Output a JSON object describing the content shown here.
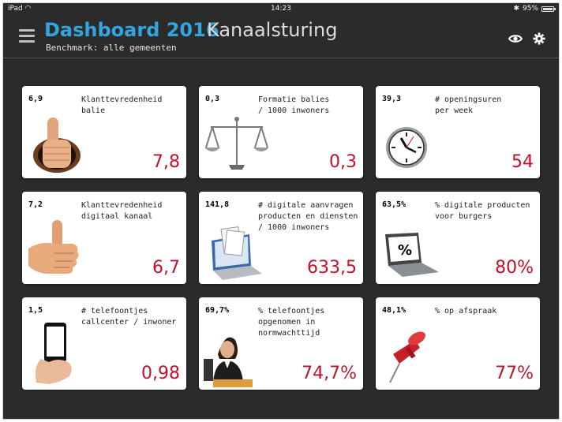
{
  "statusbar": {
    "device": "iPad",
    "time": "14:23",
    "battery": "95%"
  },
  "header": {
    "title_main": "Dashboard 2016",
    "title_sub": "Kanaalsturing",
    "benchmark": "Benchmark: alle gemeenten"
  },
  "icons": {
    "menu": "hamburger-menu-icon",
    "visibility": "eye-icon",
    "settings": "gear-icon"
  },
  "colors": {
    "accent": "#33a6df",
    "value": "#c0112a",
    "background": "#2b2b2b"
  },
  "cards": [
    {
      "benchmark": "6,9",
      "label": "Klanttevredenheid\nbalie",
      "value": "7,8"
    },
    {
      "benchmark": "0,3",
      "label": "Formatie balies\n/ 1000 inwoners",
      "value": "0,3"
    },
    {
      "benchmark": "39,3",
      "label": "# openingsuren\nper week",
      "value": "54"
    },
    {
      "benchmark": "7,2",
      "label": "Klanttevredenheid\ndigitaal kanaal",
      "value": "6,7"
    },
    {
      "benchmark": "141,8",
      "label": "# digitale aanvragen\nproducten en diensten\n/ 1000 inwoners",
      "value": "633,5"
    },
    {
      "benchmark": "63,5%",
      "label": "% digitale producten\nvoor burgers",
      "value": "80%"
    },
    {
      "benchmark": "1,5",
      "label": "# telefoontjes\ncallcenter / inwoner",
      "value": "0,98"
    },
    {
      "benchmark": "69,7%",
      "label": "% telefoontjes\nopgenomen in\nnormwachttijd",
      "value": "74,7%"
    },
    {
      "benchmark": "48,1%",
      "label": "% op afspraak",
      "value": "77%"
    }
  ]
}
